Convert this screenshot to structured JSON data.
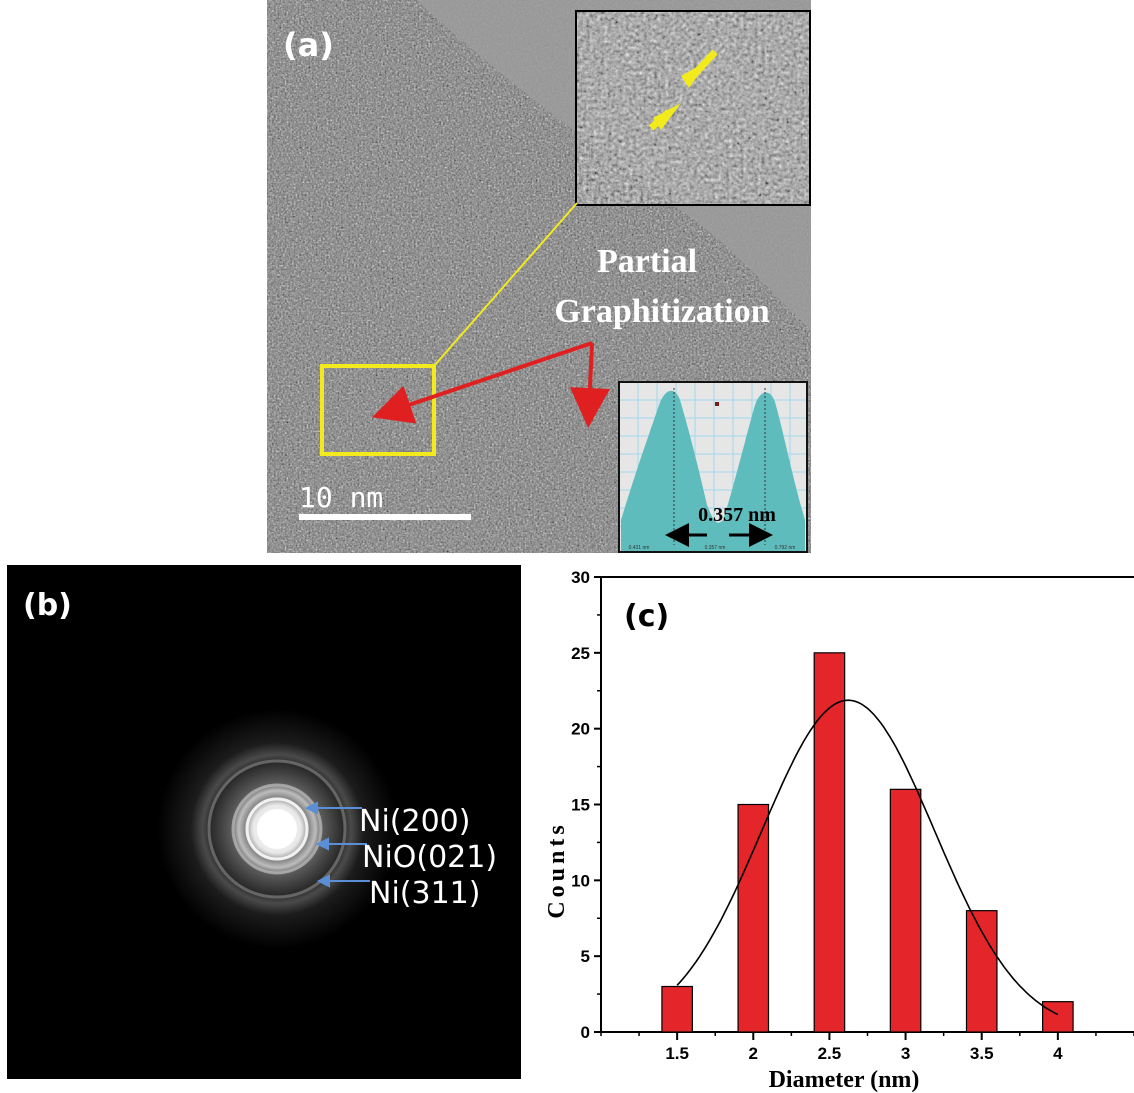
{
  "panel_a": {
    "label": "(a)",
    "annotation_line1": "Partial",
    "annotation_line2": "Graphitization",
    "scale_bar_label": "10 nm",
    "profile_inset": {
      "spacing_label": "0.357 nm",
      "tick_left": "0.431 nm",
      "tick_mid": "0.357 nm",
      "tick_right": "0.792 nm"
    },
    "colors": {
      "highlight_box": "#f2ea1d",
      "arrow_red": "#e02020",
      "profile_fill": "#5fbcbc"
    }
  },
  "panel_b": {
    "label": "(b)",
    "rings": [
      "Ni(200)",
      "NiO(021)",
      "Ni(311)"
    ],
    "colors": {
      "pointer": "#5a8fd6"
    }
  },
  "chart_data": {
    "type": "bar",
    "panel_label": "(c)",
    "xlabel": "Diameter (nm)",
    "ylabel": "Counts",
    "categories": [
      "1.5",
      "2",
      "2.5",
      "3",
      "3.5",
      "4"
    ],
    "x": [
      1.5,
      2,
      2.5,
      3,
      3.5,
      4
    ],
    "values": [
      3,
      15,
      25,
      16,
      8,
      2
    ],
    "fit_curve": "gaussian",
    "xlim": [
      1.0,
      4.5
    ],
    "ylim": [
      0,
      30
    ],
    "yticks": [
      "0",
      "5",
      "10",
      "15",
      "20",
      "25",
      "30"
    ],
    "grid": false,
    "colors": {
      "bar": "#e4262a",
      "fit": "#000000"
    }
  }
}
